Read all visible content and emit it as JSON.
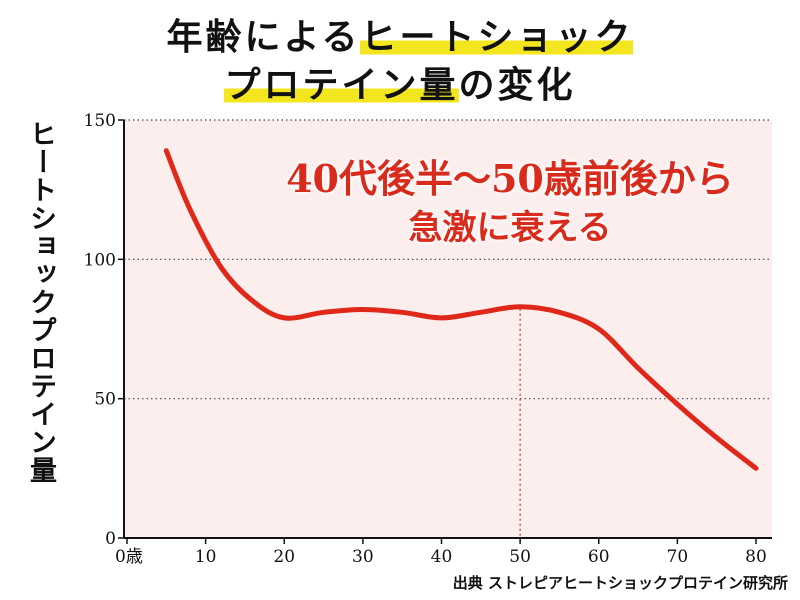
{
  "title": {
    "line1_plain": "年齢による",
    "line1_highlight": "ヒートショック",
    "line2_highlight": "プロテイン量",
    "line2_plain": "の変化"
  },
  "annotation": {
    "line1": "40代後半〜50歳前後から",
    "line2": "急激に衰える"
  },
  "source": "出典 ストレピアヒートショックプロテイン研究所",
  "colors": {
    "line": "#e0281a",
    "plot_background": "#fdeeee",
    "highlight": "#f3e61f",
    "annotation": "#d92b1c"
  },
  "chart_data": {
    "type": "line",
    "title": "年齢によるヒートショックプロテイン量の変化",
    "xlabel": "",
    "ylabel": "ヒートショックプロテイン量",
    "x_tick_labels": [
      "0歳",
      "10",
      "20",
      "30",
      "40",
      "50",
      "60",
      "70",
      "80"
    ],
    "x_ticks": [
      0,
      10,
      20,
      30,
      40,
      50,
      60,
      70,
      80
    ],
    "y_ticks": [
      0,
      50,
      100,
      150
    ],
    "xlim": [
      0,
      83
    ],
    "ylim": [
      0,
      150
    ],
    "grid": "horizontal dotted at 50, 100, 150",
    "marker_line_x": 50,
    "series": [
      {
        "x": [
          5,
          8,
          12,
          16,
          20,
          25,
          30,
          35,
          40,
          45,
          50,
          55,
          60,
          65,
          70,
          75,
          80
        ],
        "values": [
          139,
          118,
          97,
          85,
          79,
          81,
          82,
          81,
          79,
          81,
          83,
          81,
          75,
          61,
          48,
          36,
          25
        ]
      }
    ]
  }
}
